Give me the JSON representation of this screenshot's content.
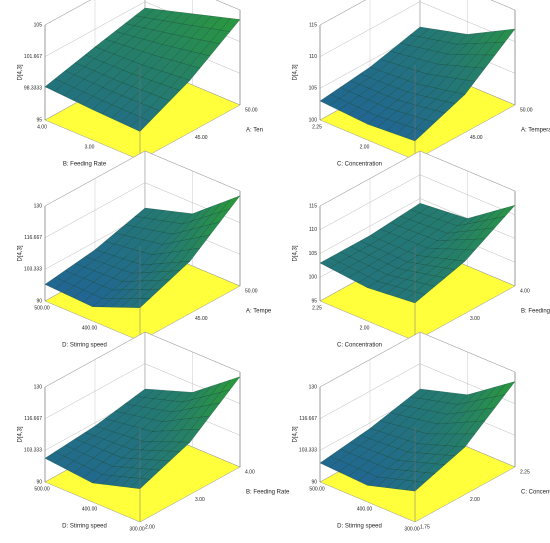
{
  "chart_data": [
    {
      "type": "surface",
      "xlabel": "B: Feeding Rate",
      "ylabel": "A: Ten",
      "zlabel": "D[4,3]",
      "xlim": [
        4,
        2
      ],
      "ylim": [
        40,
        50
      ],
      "zlim": [
        95,
        105
      ],
      "xticks": [
        {
          "value": 4,
          "label": "4.00"
        },
        {
          "value": 3,
          "label": "3.00"
        },
        {
          "value": 2,
          "label": "2.00"
        }
      ],
      "yticks": [
        {
          "value": 40,
          "label": "40.00"
        },
        {
          "value": 45,
          "label": "45.00"
        },
        {
          "value": 50,
          "label": "50.00"
        }
      ],
      "zticks": [
        95,
        98.3333,
        101.667,
        105
      ],
      "z": [
        [
          98.5,
          99.8,
          101
        ],
        [
          98.2,
          100,
          102.5
        ],
        [
          98,
          100.5,
          104
        ]
      ],
      "floor_color": "#ffff3c",
      "colors": [
        "#1f5aa8",
        "#2a9a3a"
      ]
    },
    {
      "type": "surface",
      "xlabel": "C: Concentration",
      "ylabel": "A: Temperature",
      "zlabel": "D[4,3]",
      "xlim": [
        2.25,
        1.75
      ],
      "ylim": [
        40,
        50
      ],
      "zlim": [
        100,
        115
      ],
      "xticks": [
        {
          "value": 2.25,
          "label": "2.25"
        },
        {
          "value": 2,
          "label": "2.00"
        },
        {
          "value": 1.75,
          "label": "1.75"
        }
      ],
      "yticks": [
        {
          "value": 40,
          "label": "40.00"
        },
        {
          "value": 45,
          "label": "45.00"
        },
        {
          "value": 50,
          "label": "50.00"
        }
      ],
      "zticks": [
        100,
        105,
        110,
        115
      ],
      "z": [
        [
          103,
          104,
          106
        ],
        [
          102.5,
          104.5,
          108
        ],
        [
          103,
          106,
          112
        ]
      ],
      "floor_color": "#ffff3c",
      "colors": [
        "#1f5aa8",
        "#2a9a3a"
      ]
    },
    {
      "type": "surface",
      "xlabel": "D: Stirring speed",
      "ylabel": "A: Tempe",
      "zlabel": "D[4,3]",
      "xlim": [
        500,
        300
      ],
      "ylim": [
        40,
        50
      ],
      "zlim": [
        90,
        130
      ],
      "xticks": [
        {
          "value": 500,
          "label": "500.00"
        },
        {
          "value": 400,
          "label": "400.00"
        },
        {
          "value": 300,
          "label": "300.00"
        }
      ],
      "yticks": [
        {
          "value": 40,
          "label": "40.00"
        },
        {
          "value": 45,
          "label": "45.00"
        },
        {
          "value": 50,
          "label": "50.00"
        }
      ],
      "zticks": [
        90,
        103.333,
        116.667,
        130
      ],
      "z": [
        [
          97,
          100,
          106
        ],
        [
          96,
          102,
          112
        ],
        [
          104,
          112,
          128
        ]
      ],
      "floor_color": "#ffff3c",
      "colors": [
        "#1f5aa8",
        "#2a9a3a"
      ]
    },
    {
      "type": "surface",
      "xlabel": "C: Concentration",
      "ylabel": "B: Feeding Rate",
      "zlabel": "D[4,3]",
      "xlim": [
        2.25,
        1.75
      ],
      "ylim": [
        2,
        4
      ],
      "zlim": [
        95,
        115
      ],
      "xticks": [
        {
          "value": 2.25,
          "label": "2.25"
        },
        {
          "value": 2,
          "label": "2.00"
        },
        {
          "value": 1.75,
          "label": "1.75"
        }
      ],
      "yticks": [
        {
          "value": 2,
          "label": "2.00"
        },
        {
          "value": 3,
          "label": "3.00"
        },
        {
          "value": 4,
          "label": "4.00"
        }
      ],
      "zticks": [
        95,
        100,
        105,
        110,
        115
      ],
      "z": [
        [
          103,
          103,
          104
        ],
        [
          102,
          103,
          105
        ],
        [
          103,
          106,
          112
        ]
      ],
      "floor_color": "#ffff3c",
      "colors": [
        "#1f5aa8",
        "#2a9a3a"
      ]
    },
    {
      "type": "surface",
      "xlabel": "D: Stirring speed",
      "ylabel": "B: Feeding Rate",
      "zlabel": "D[4,3]",
      "xlim": [
        500,
        300
      ],
      "ylim": [
        2,
        4
      ],
      "zlim": [
        90,
        130
      ],
      "xticks": [
        {
          "value": 500,
          "label": "500.00"
        },
        {
          "value": 400,
          "label": "400.00"
        },
        {
          "value": 300,
          "label": "300.00"
        }
      ],
      "yticks": [
        {
          "value": 2,
          "label": "2.00"
        },
        {
          "value": 3,
          "label": "3.00"
        },
        {
          "value": 4,
          "label": "4.00"
        }
      ],
      "zticks": [
        90,
        103.333,
        116.667,
        130
      ],
      "z": [
        [
          100,
          102,
          106
        ],
        [
          98,
          104,
          113
        ],
        [
          104,
          112,
          128
        ]
      ],
      "floor_color": "#ffff3c",
      "colors": [
        "#1f5aa8",
        "#2a9a3a"
      ]
    },
    {
      "type": "surface",
      "xlabel": "D: Stirring speed",
      "ylabel": "C: Concentration",
      "zlabel": "D[4,3]",
      "xlim": [
        500,
        300
      ],
      "ylim": [
        1.75,
        2.25
      ],
      "zlim": [
        90,
        130
      ],
      "xticks": [
        {
          "value": 500,
          "label": "500.00"
        },
        {
          "value": 400,
          "label": "400.00"
        },
        {
          "value": 300,
          "label": "300.00"
        }
      ],
      "yticks": [
        {
          "value": 1.75,
          "label": "1.75"
        },
        {
          "value": 2,
          "label": "2.00"
        },
        {
          "value": 2.25,
          "label": "2.25"
        }
      ],
      "zticks": [
        90,
        103.333,
        116.667,
        130
      ],
      "z": [
        [
          98,
          101,
          106
        ],
        [
          97,
          103,
          112
        ],
        [
          103,
          110,
          126
        ]
      ],
      "floor_color": "#ffff3c",
      "colors": [
        "#1f5aa8",
        "#2a9a3a"
      ]
    }
  ]
}
